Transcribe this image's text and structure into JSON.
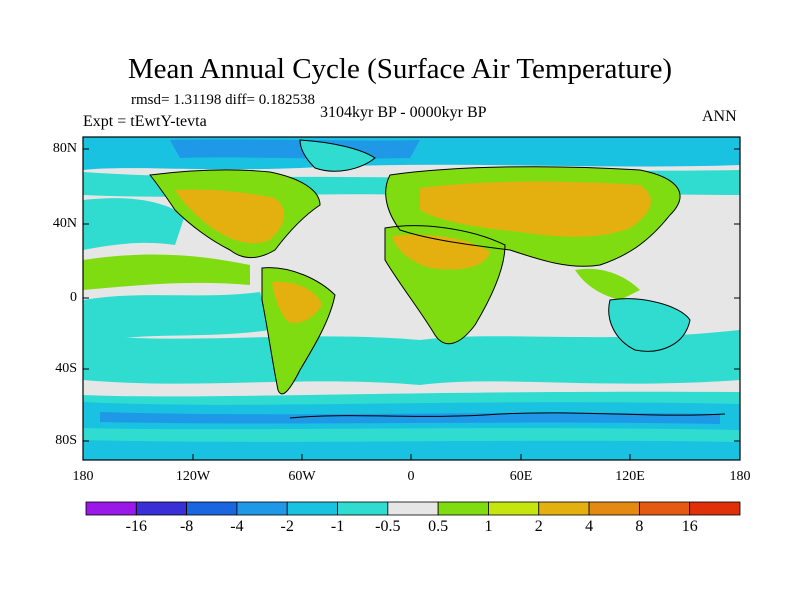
{
  "title": "Mean Annual Cycle (Surface Air Temperature)",
  "stats": "rmsd= 1.31198 diff= 0.182538",
  "experiment": "Expt = tEwtY-tevta",
  "period": "3104kyr BP - 0000kyr BP",
  "season": "ANN",
  "lat_labels": [
    "80N",
    "40N",
    "0",
    "40S",
    "80S"
  ],
  "lon_labels": [
    "180",
    "120W",
    "60W",
    "0",
    "60E",
    "120E",
    "180"
  ],
  "colorbar": {
    "labels": [
      "-16",
      "-8",
      "-4",
      "-2",
      "-1",
      "-0.5",
      "0.5",
      "1",
      "2",
      "4",
      "8",
      "16"
    ],
    "colors": [
      "#9a18e8",
      "#3a2fd6",
      "#1a66e0",
      "#1f98e8",
      "#18c2e0",
      "#30dcd0",
      "#e6e6e6",
      "#7fdc10",
      "#c4e60e",
      "#e4b010",
      "#e48a12",
      "#e45a12",
      "#e0300a"
    ]
  },
  "palette": {
    "neutral": "#e6e6e6",
    "cool1": "#30dcd0",
    "cool2": "#18c2e0",
    "cool3": "#1f98e8",
    "cool4": "#1a66e0",
    "warm1": "#7fdc10",
    "warm2": "#c4e60e",
    "warm3": "#e4b010",
    "warm4": "#e48a12"
  }
}
